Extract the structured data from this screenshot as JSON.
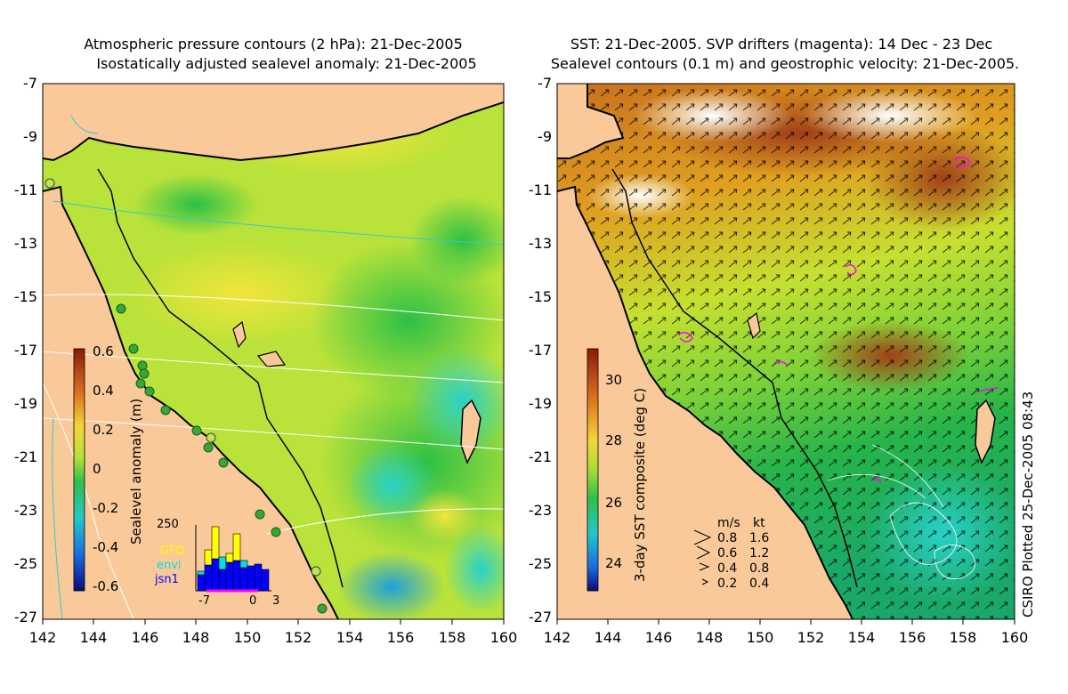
{
  "left_panel": {
    "title_line1": "Atmospheric pressure contours (2 hPa): 21-Dec-2005",
    "title_line2": "Isostatically adjusted sealevel anomaly: 21-Dec-2005",
    "colorbar_label": "Sealevel anomaly (m)",
    "colorbar_ticks": [
      "0.6",
      "0.4",
      "0.2",
      "0",
      "-0.2",
      "-0.4",
      "-0.6"
    ],
    "histogram": {
      "ymax_label": "250",
      "legend": [
        {
          "label": "GFO",
          "color": "#ffff00"
        },
        {
          "label": "envi",
          "color": "#00e0e0"
        },
        {
          "label": "jsn1",
          "color": "#0000ff"
        }
      ],
      "x_ticks": [
        "-7",
        "0",
        "3"
      ]
    }
  },
  "right_panel": {
    "title_line1": "SST: 21-Dec-2005. SVP drifters (magenta): 14 Dec - 23 Dec",
    "title_line2": "Sealevel contours (0.1 m) and geostrophic velocity: 21-Dec-2005.",
    "colorbar_label": "3-day SST composite (deg C)",
    "colorbar_ticks": [
      "30",
      "28",
      "26",
      "24"
    ],
    "velocity_legend": {
      "header_ms": "m/s",
      "header_kt": "kt",
      "rows": [
        {
          "ms": "0.8",
          "kt": "1.6"
        },
        {
          "ms": "0.6",
          "kt": "1.2"
        },
        {
          "ms": "0.4",
          "kt": "0.8"
        },
        {
          "ms": "0.2",
          "kt": "0.4"
        }
      ]
    }
  },
  "axes": {
    "y_ticks": [
      "-7",
      "-9",
      "-11",
      "-13",
      "-15",
      "-17",
      "-19",
      "-21",
      "-23",
      "-25",
      "-27"
    ],
    "x_ticks": [
      "142",
      "144",
      "146",
      "148",
      "150",
      "152",
      "154",
      "156",
      "158",
      "160"
    ]
  },
  "stamp": "CSIRO Plotted 25-Dec-2005 08:43",
  "colors": {
    "land": "#f9c99a",
    "coast": "#000000",
    "pressure_contour": "#ffffff",
    "tide_gauge": "#33aa33",
    "drifter": "#ff00ff"
  }
}
